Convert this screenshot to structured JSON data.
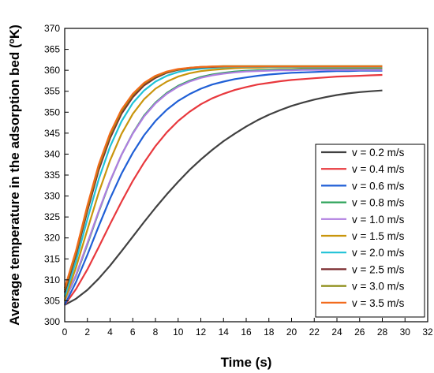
{
  "chart_data": {
    "type": "line",
    "title": "",
    "xlabel": "Time (s)",
    "ylabel": "Average temperature in the adsorption bed (ºK)",
    "xlim": [
      0,
      32
    ],
    "ylim": [
      300,
      370
    ],
    "xticks": [
      0,
      2,
      4,
      6,
      8,
      10,
      12,
      14,
      16,
      18,
      20,
      22,
      24,
      26,
      28,
      30,
      32
    ],
    "yticks": [
      300,
      305,
      310,
      315,
      320,
      325,
      330,
      335,
      340,
      345,
      350,
      355,
      360,
      365,
      370
    ],
    "grid": false,
    "legend_position": "bottom-right",
    "x": [
      0,
      1,
      2,
      3,
      4,
      5,
      6,
      7,
      8,
      9,
      10,
      11,
      12,
      13,
      14,
      15,
      16,
      17,
      18,
      19,
      20,
      21,
      22,
      23,
      24,
      25,
      26,
      27,
      28
    ],
    "series": [
      {
        "name": "v = 0.2 m/s",
        "color": "#404040",
        "values": [
          304.0,
          305.5,
          307.6,
          310.3,
          313.4,
          316.8,
          320.3,
          323.8,
          327.2,
          330.4,
          333.4,
          336.2,
          338.7,
          341.0,
          343.1,
          344.9,
          346.6,
          348.1,
          349.4,
          350.5,
          351.5,
          352.3,
          353.0,
          353.6,
          354.1,
          354.5,
          354.8,
          355.0,
          355.2
        ]
      },
      {
        "name": "v = 0.4 m/s",
        "color": "#e8383d",
        "values": [
          304.0,
          307.8,
          312.5,
          317.8,
          323.3,
          328.6,
          333.6,
          338.0,
          341.9,
          345.2,
          347.9,
          350.1,
          351.9,
          353.3,
          354.4,
          355.3,
          356.0,
          356.6,
          357.0,
          357.4,
          357.7,
          357.9,
          358.1,
          358.3,
          358.5,
          358.6,
          358.7,
          358.8,
          358.9
        ]
      },
      {
        "name": "v = 0.6 m/s",
        "color": "#1f5fd6",
        "values": [
          304.0,
          309.5,
          316.0,
          322.8,
          329.4,
          335.3,
          340.3,
          344.5,
          347.9,
          350.6,
          352.7,
          354.3,
          355.6,
          356.6,
          357.3,
          357.9,
          358.3,
          358.7,
          359.0,
          359.2,
          359.4,
          359.5,
          359.6,
          359.7,
          359.8,
          359.8,
          359.9,
          359.9,
          359.9
        ]
      },
      {
        "name": "v = 0.8 m/s",
        "color": "#2ea35a",
        "values": [
          305.0,
          311.0,
          318.5,
          326.2,
          333.5,
          339.8,
          345.0,
          349.2,
          352.3,
          354.6,
          356.3,
          357.5,
          358.4,
          359.0,
          359.4,
          359.7,
          359.9,
          360.0,
          360.1,
          360.2,
          360.2,
          360.3,
          360.3,
          360.3,
          360.3,
          360.3,
          360.3,
          360.3,
          360.3
        ]
      },
      {
        "name": "v = 1.0 m/s",
        "color": "#b07ee0",
        "values": [
          305.0,
          311.2,
          318.8,
          326.4,
          333.6,
          339.8,
          344.9,
          349.0,
          352.1,
          354.4,
          356.1,
          357.3,
          358.2,
          358.8,
          359.2,
          359.5,
          359.7,
          359.8,
          359.9,
          360.0,
          360.0,
          360.1,
          360.1,
          360.1,
          360.1,
          360.1,
          360.1,
          360.1,
          360.1
        ]
      },
      {
        "name": "v = 1.5 m/s",
        "color": "#c9950c",
        "values": [
          305.0,
          313.0,
          322.0,
          330.8,
          338.5,
          344.8,
          349.6,
          353.1,
          355.6,
          357.3,
          358.5,
          359.3,
          359.8,
          360.1,
          360.3,
          360.5,
          360.6,
          360.6,
          360.7,
          360.7,
          360.7,
          360.7,
          360.7,
          360.7,
          360.7,
          360.7,
          360.7,
          360.7,
          360.7
        ]
      },
      {
        "name": "v = 2.0 m/s",
        "color": "#1fc2d6",
        "values": [
          306.0,
          314.5,
          324.5,
          334.0,
          341.8,
          347.8,
          352.2,
          355.2,
          357.3,
          358.7,
          359.6,
          360.1,
          360.4,
          360.6,
          360.7,
          360.8,
          360.8,
          360.8,
          360.8,
          360.8,
          360.8,
          360.8,
          360.8,
          360.8,
          360.8,
          360.8,
          360.8,
          360.8,
          360.8
        ]
      },
      {
        "name": "v = 2.5 m/s",
        "color": "#7a2a2e",
        "values": [
          307.0,
          316.0,
          326.5,
          336.2,
          343.8,
          349.6,
          353.6,
          356.4,
          358.2,
          359.4,
          360.1,
          360.5,
          360.7,
          360.8,
          360.9,
          360.9,
          360.9,
          360.9,
          360.9,
          360.9,
          360.9,
          360.9,
          360.9,
          360.9,
          360.9,
          360.9,
          360.9,
          360.9,
          360.9
        ]
      },
      {
        "name": "v = 3.0 m/s",
        "color": "#8a8a10",
        "values": [
          307.5,
          316.5,
          327.2,
          337.0,
          344.5,
          350.2,
          354.1,
          356.8,
          358.5,
          359.6,
          360.2,
          360.6,
          360.8,
          360.9,
          361.0,
          361.0,
          361.0,
          361.0,
          361.0,
          361.0,
          361.0,
          361.0,
          361.0,
          361.0,
          361.0,
          361.0,
          361.0,
          361.0,
          361.0
        ]
      },
      {
        "name": "v = 3.5 m/s",
        "color": "#f26a1b",
        "values": [
          308.0,
          317.0,
          327.8,
          337.5,
          345.0,
          350.6,
          354.4,
          357.0,
          358.7,
          359.7,
          360.3,
          360.6,
          360.8,
          360.9,
          360.9,
          360.9,
          360.9,
          360.9,
          360.9,
          360.9,
          360.9,
          360.9,
          360.9,
          360.9,
          360.9,
          360.9,
          360.9,
          360.9,
          360.9
        ]
      }
    ]
  }
}
